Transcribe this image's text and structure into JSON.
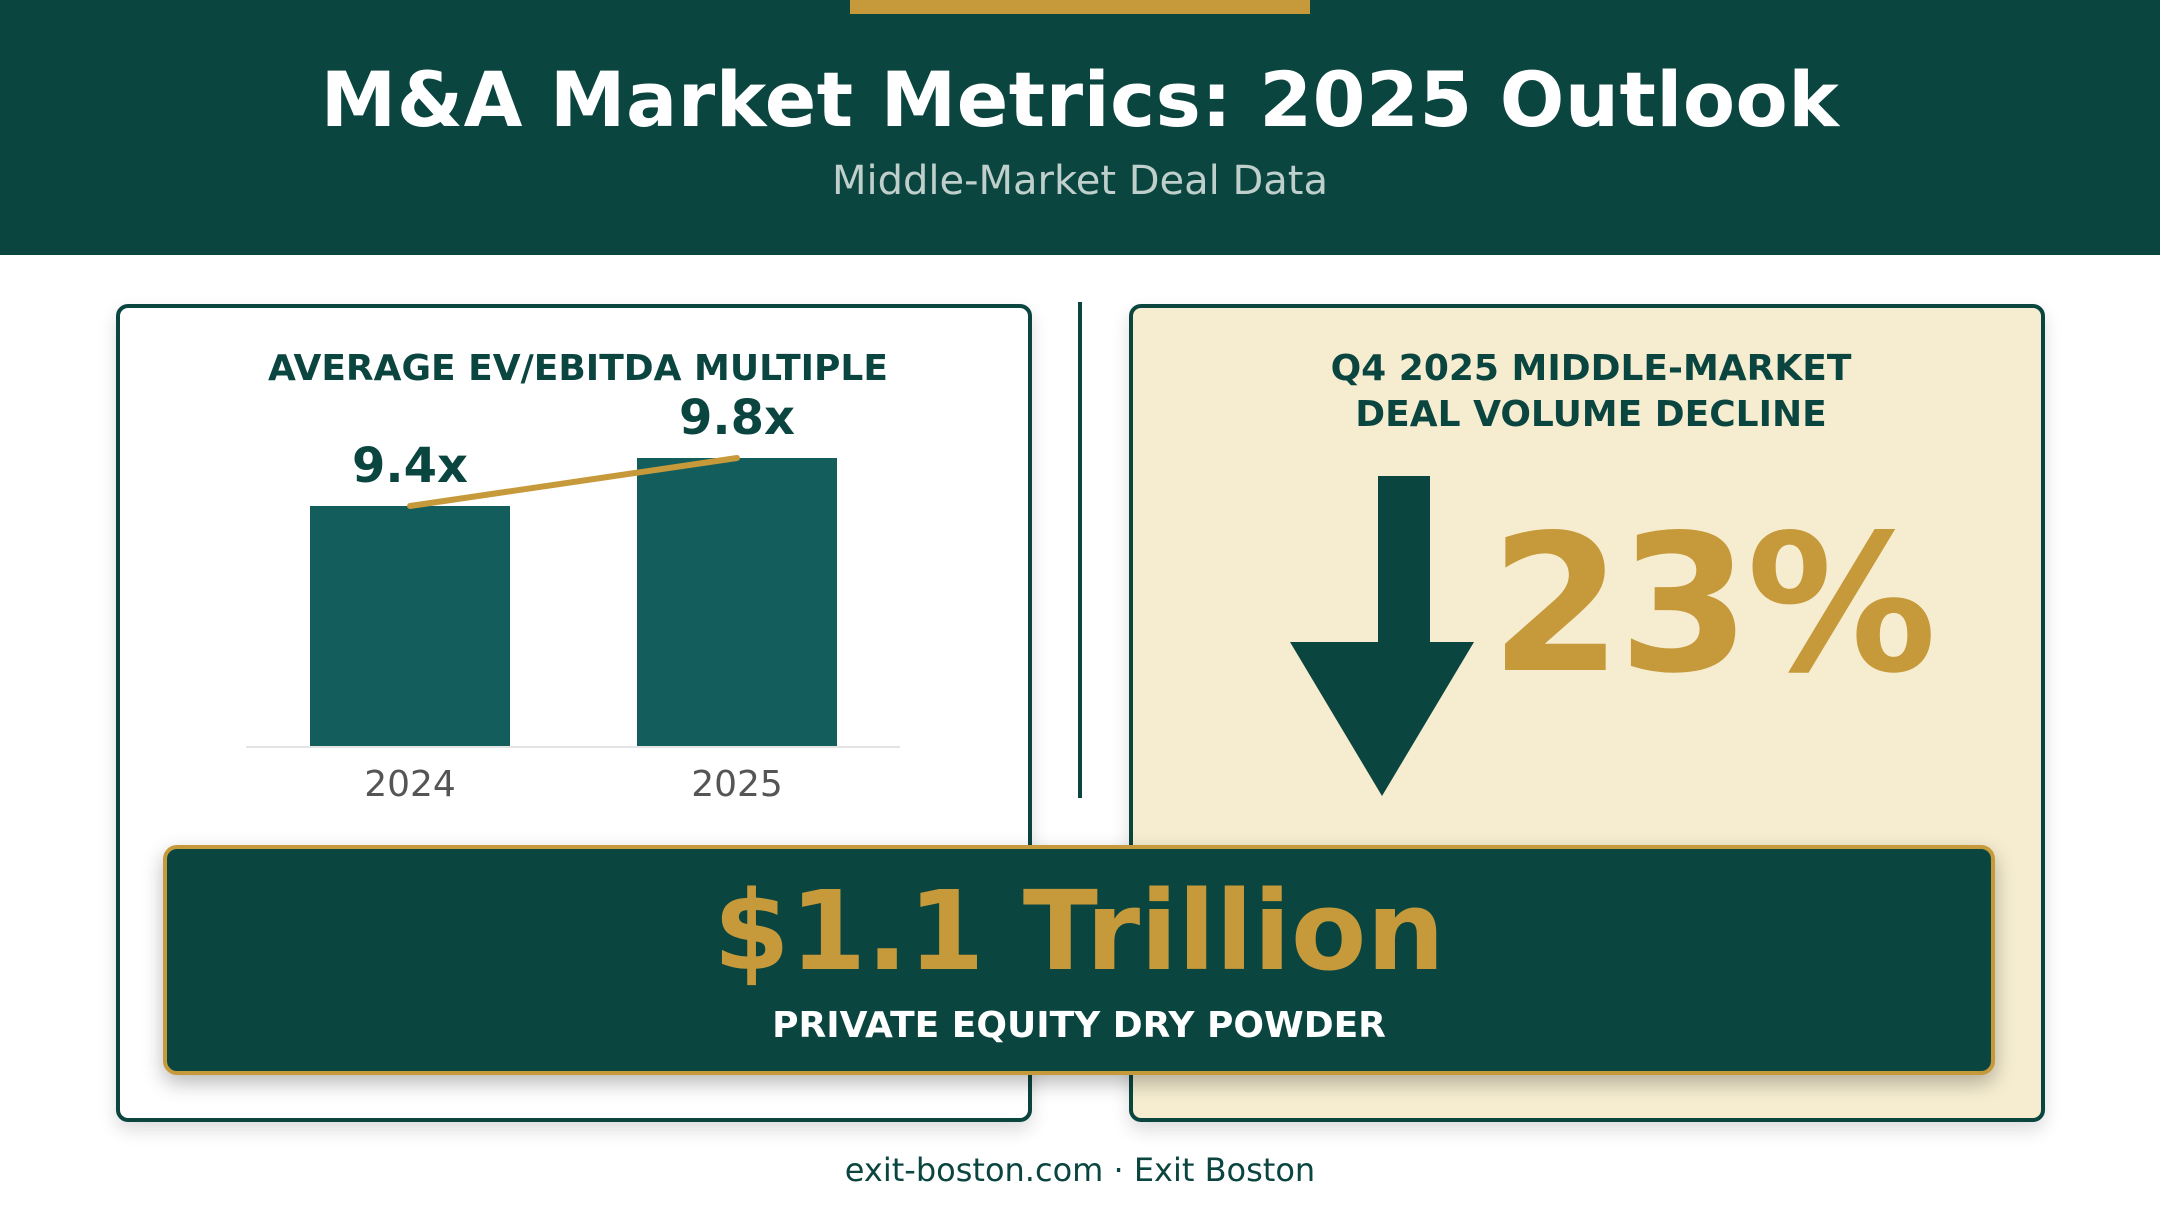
{
  "header": {
    "title": "M&A Market Metrics: 2025 Outlook",
    "subtitle": "Middle-Market Deal Data"
  },
  "chart_data": {
    "type": "bar",
    "title": "AVERAGE EV/EBITDA MULTIPLE",
    "categories": [
      "2024",
      "2025"
    ],
    "values": [
      9.4,
      9.8
    ],
    "value_labels": [
      "9.4x",
      "9.8x"
    ],
    "trend_line": true,
    "xlabel": "",
    "ylabel": "",
    "grid": false
  },
  "decline_panel": {
    "heading_line1": "Q4 2025 MIDDLE-MARKET",
    "heading_line2": "DEAL VOLUME DECLINE",
    "value": "23%",
    "icon": "down-arrow-icon"
  },
  "banner": {
    "value": "$1.1 Trillion",
    "label": "PRIVATE EQUITY DRY POWDER"
  },
  "footer": {
    "text": "exit-boston.com · Exit Boston"
  },
  "colors": {
    "primary": "#0b4540",
    "bar": "#135e5c",
    "accent": "#c69a3a",
    "cream": "#f6edd0"
  }
}
